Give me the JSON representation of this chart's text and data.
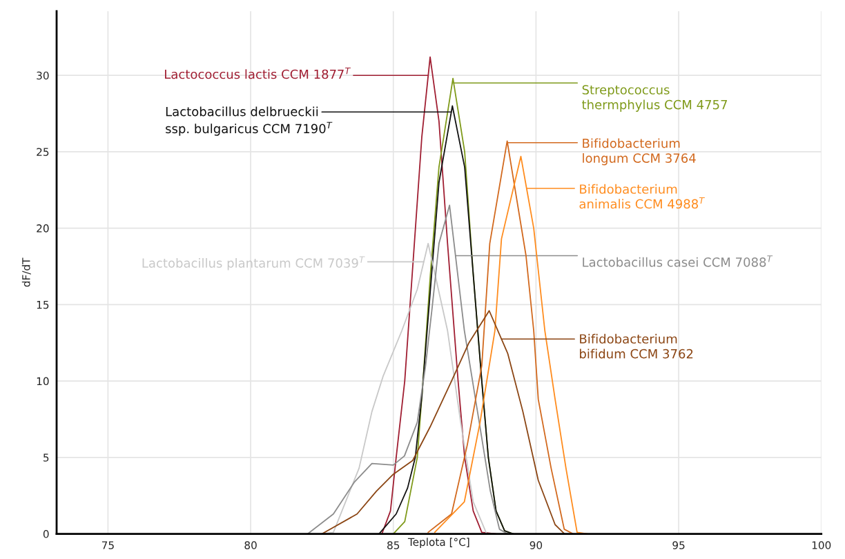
{
  "chart_data": {
    "type": "line",
    "xlabel": "Teplota [°C]",
    "ylabel": "dF/dT",
    "xlim": [
      73.2,
      100
    ],
    "xticks": [
      75,
      80,
      85,
      90,
      95,
      100
    ],
    "ylim": [
      0,
      34.2
    ],
    "yticks": [
      0,
      5,
      10,
      15,
      20,
      25,
      30
    ],
    "grid": true,
    "series": [
      {
        "name": "Lactococcus lactis CCM 1877$^{T}$",
        "color": "#a01e32",
        "x": [
          84.6,
          84.9,
          85.1,
          85.4,
          85.7,
          86.0,
          86.29,
          86.6,
          86.9,
          87.27,
          87.5,
          87.8,
          88.1,
          88.6
        ],
        "values": [
          0,
          1.5,
          5,
          10,
          18,
          26,
          31.2,
          27,
          19,
          10,
          5,
          1.5,
          0.1,
          0
        ]
      },
      {
        "name": "Streptococcus\nthermphylus CCM 4757",
        "color": "#7f9a1a",
        "x": [
          85.0,
          85.4,
          85.84,
          86.04,
          86.3,
          86.6,
          87.09,
          87.5,
          87.8,
          88.1,
          88.33,
          88.6,
          88.9,
          89.2
        ],
        "values": [
          0,
          0.8,
          5,
          10,
          17,
          24,
          29.8,
          25,
          17,
          10,
          5,
          1.5,
          0.2,
          0
        ]
      },
      {
        "name": "Lactobacillus delbrueckii\nssp. bulgaricus CCM 7190$^{T}$",
        "color": "#111111",
        "x": [
          84.5,
          85.1,
          85.5,
          85.77,
          86.0,
          86.3,
          86.6,
          87.07,
          87.5,
          87.8,
          88.1,
          88.33,
          88.6,
          88.9,
          89.2
        ],
        "values": [
          0,
          1.3,
          3,
          5,
          9,
          16,
          23,
          28,
          24,
          17,
          10,
          5,
          1.5,
          0.2,
          0
        ]
      },
      {
        "name": "Lactobacillus plantarum CCM 7039$^{T}$",
        "color": "#c8c8c8",
        "x": [
          82.5,
          82.9,
          83.8,
          84.25,
          84.64,
          85.3,
          85.84,
          86.22,
          86.9,
          87.36,
          87.8,
          88.27
        ],
        "values": [
          0,
          0.1,
          4.3,
          8.0,
          10.3,
          13.3,
          16,
          19.0,
          13.3,
          7.3,
          2.1,
          0
        ]
      },
      {
        "name": "Lactobacillus casei CCM 7088$^{T}$",
        "color": "#8c8c8c",
        "x": [
          82.0,
          82.9,
          83.64,
          84.25,
          85.0,
          85.39,
          85.84,
          86.13,
          86.36,
          86.6,
          86.97,
          87.49,
          87.95,
          88.4,
          88.72,
          89.0
        ],
        "values": [
          0,
          1.3,
          3.4,
          4.6,
          4.5,
          5.1,
          7.3,
          11.0,
          14.8,
          19,
          21.5,
          13.3,
          8.0,
          2.8,
          0.3,
          0
        ]
      },
      {
        "name": "Bifidobacterium\nlongum CCM 3764",
        "color": "#d2691e",
        "x": [
          86.22,
          87.04,
          87.59,
          88.1,
          88.38,
          88.99,
          89.65,
          89.92,
          90.08,
          90.53,
          90.99,
          91.3
        ],
        "values": [
          0.1,
          1.3,
          5.8,
          11.0,
          19,
          25.7,
          18.2,
          13.3,
          8.8,
          4.3,
          0.3,
          0
        ]
      },
      {
        "name": "Bifidobacterium\nanimalis CCM 4988$^{T}$",
        "color": "#ff8c1e",
        "x": [
          86.45,
          87.49,
          88.04,
          88.56,
          88.79,
          89.47,
          89.92,
          90.31,
          90.67,
          91.05,
          91.44,
          91.8
        ],
        "values": [
          0.1,
          2.1,
          7.3,
          13.3,
          19.3,
          24.7,
          20,
          13.3,
          8.8,
          4.3,
          0.1,
          0
        ]
      },
      {
        "name": "Bifidobacterium\nbifidum CCM 3762",
        "color": "#8b4513",
        "x": [
          82.5,
          83.73,
          84.41,
          85.0,
          85.68,
          86.29,
          87.04,
          87.65,
          88.36,
          89.01,
          89.54,
          90.08,
          90.67,
          91.0
        ],
        "values": [
          0,
          1.3,
          2.8,
          3.9,
          4.8,
          7.0,
          10.0,
          12.5,
          14.6,
          11.8,
          8.0,
          3.5,
          0.6,
          0
        ]
      }
    ]
  }
}
